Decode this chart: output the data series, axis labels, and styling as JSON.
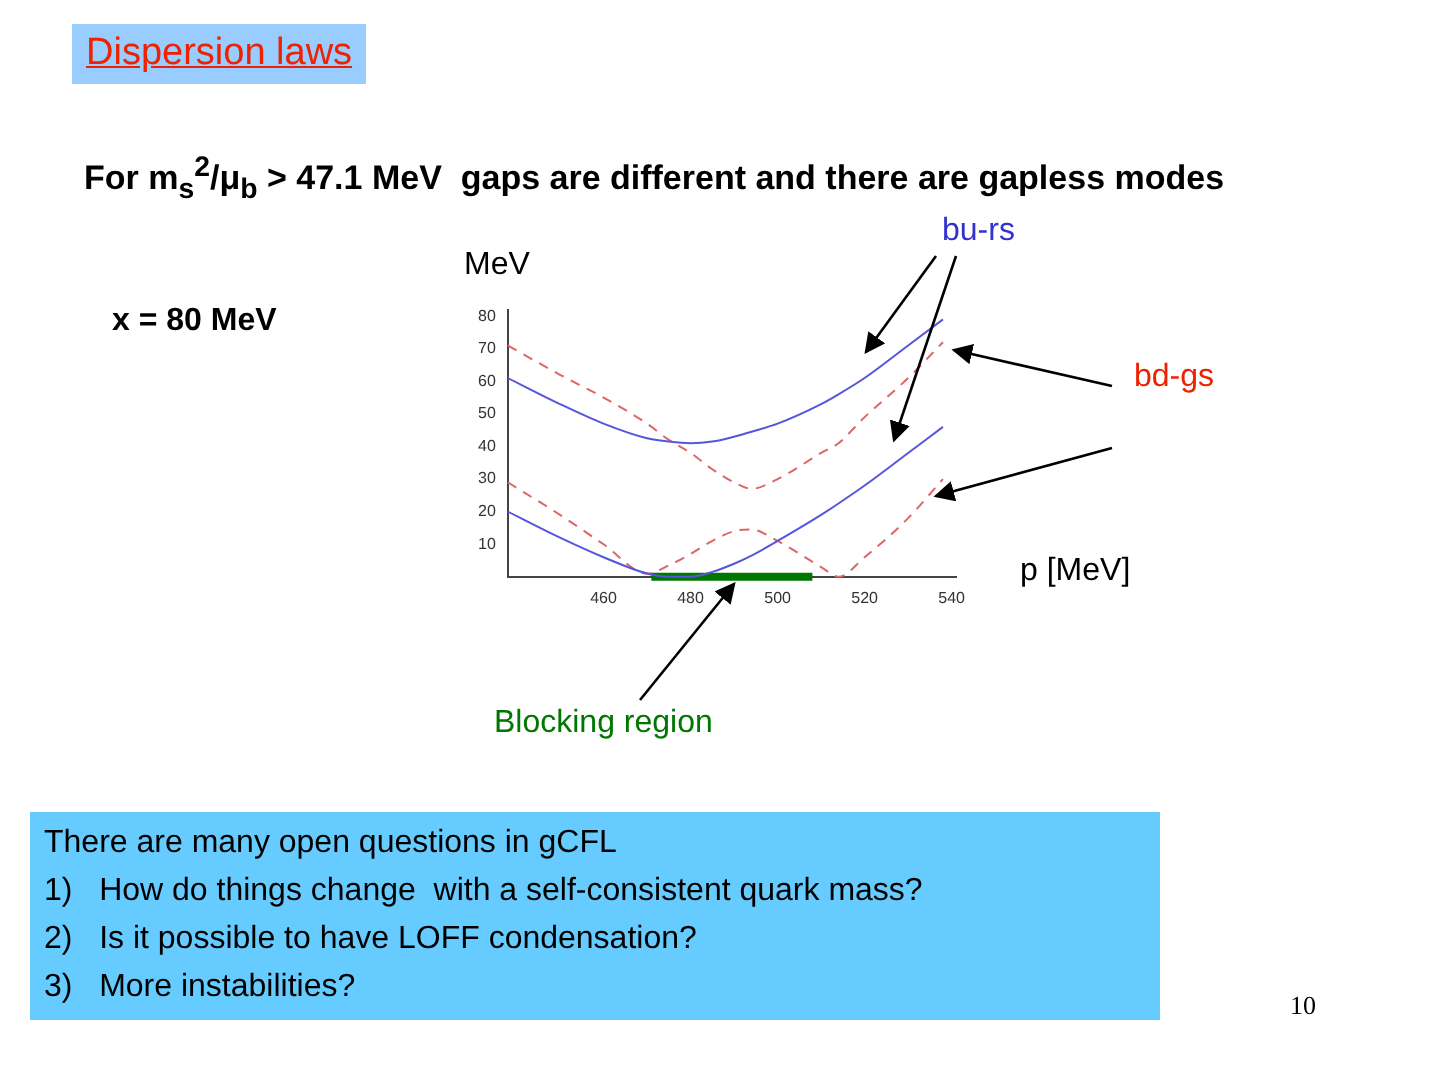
{
  "chart_data": {
    "type": "line",
    "title": "Dispersion laws",
    "subtitle": "For m$_{s}$$^{2}$/μ$_{b}$ > 47.1 MeV  gaps are different and there are gapless modes",
    "xlabel": "p [MeV]",
    "ylabel": "MeV",
    "x": [
      438,
      450,
      460,
      470,
      475,
      480,
      485,
      490,
      494,
      500,
      510,
      514,
      520,
      530,
      538
    ],
    "series": [
      {
        "name": "bu-rs",
        "color": "#5555dd",
        "line_style": "solid",
        "values": [
          61,
          53,
          47,
          42.5,
          41.5,
          41,
          41.5,
          43,
          44.5,
          47,
          53,
          56,
          61,
          71,
          79
        ]
      },
      {
        "color": "#5555dd",
        "line_style": "solid",
        "values": [
          20,
          12,
          6,
          1,
          0,
          0,
          1.5,
          4,
          6.5,
          11,
          19,
          22.5,
          28,
          38,
          46
        ]
      },
      {
        "name": "bd-gs",
        "color": "#dd6666",
        "line_style": "dashed",
        "values": [
          71,
          62,
          55,
          47,
          42,
          38,
          33,
          29,
          27,
          30,
          38,
          41,
          49,
          61,
          72
        ]
      },
      {
        "color": "#dd6666",
        "line_style": "dashed",
        "values": [
          29,
          19,
          10,
          1,
          3.5,
          7,
          11,
          14,
          14.5,
          11,
          3,
          0,
          6,
          18,
          30
        ]
      },
      {
        "name": "Blocking region",
        "color": "#007700",
        "line_style": "solid",
        "x": [
          471,
          508
        ],
        "values": [
          0,
          0
        ]
      }
    ],
    "xlim": [
      438,
      541
    ],
    "ylim": [
      0,
      82
    ],
    "xticks": [
      460,
      480,
      500,
      520,
      540
    ],
    "yticks": [
      10,
      20,
      30,
      40,
      50,
      60,
      70,
      80
    ],
    "annotations": [
      "x = 80 MeV",
      "There are many open questions in gCFL",
      "1)   How do things change  with a self-consistent quark mass?",
      "2)   Is it possible to have LOFF condensation?",
      "3)   More instabilities?",
      "10"
    ],
    "grid": false,
    "legend": false,
    "marker": "none"
  }
}
